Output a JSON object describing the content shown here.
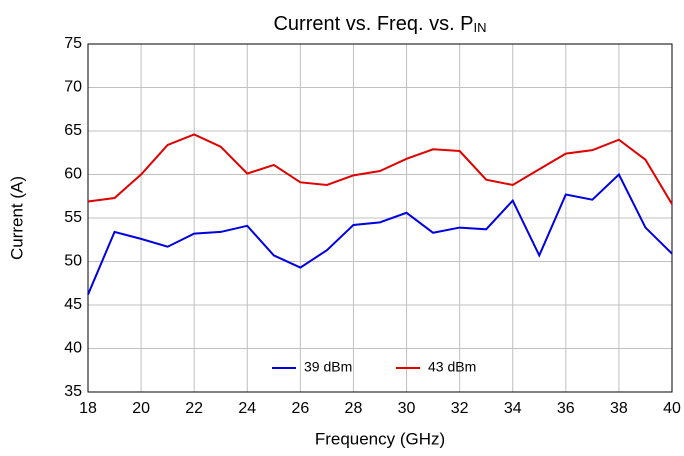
{
  "chart_data": {
    "type": "line",
    "title": "Current vs. Freq. vs. P",
    "title_subscript": "IN",
    "x_label": "Frequency (GHz)",
    "y_label": "Current (A)",
    "x": [
      18,
      19,
      20,
      21,
      22,
      23,
      24,
      25,
      26,
      27,
      28,
      29,
      30,
      31,
      32,
      33,
      34,
      35,
      36,
      37,
      38,
      39,
      40
    ],
    "series": [
      {
        "name": "39 dBm",
        "color": "#0000e0",
        "values": [
          46.2,
          53.4,
          52.6,
          51.7,
          53.2,
          53.4,
          54.1,
          50.7,
          49.3,
          51.3,
          54.2,
          54.5,
          55.6,
          53.3,
          53.9,
          53.7,
          57.0,
          50.7,
          57.7,
          57.1,
          60.0,
          53.9,
          50.9
        ]
      },
      {
        "name": "43 dBm",
        "color": "#e00000",
        "values": [
          56.9,
          57.3,
          60.0,
          63.4,
          64.6,
          63.2,
          60.1,
          61.1,
          59.1,
          58.8,
          59.9,
          60.4,
          61.8,
          62.9,
          62.7,
          59.4,
          58.8,
          60.6,
          62.4,
          62.8,
          64.0,
          61.7,
          56.6
        ]
      }
    ],
    "xlim": [
      18,
      40
    ],
    "xticks": [
      18,
      20,
      22,
      24,
      26,
      28,
      30,
      32,
      34,
      36,
      38,
      40
    ],
    "ylim": [
      35,
      75
    ],
    "yticks": [
      35,
      40,
      45,
      50,
      55,
      60,
      65,
      70,
      75
    ],
    "grid": true,
    "legend": "bottom"
  }
}
